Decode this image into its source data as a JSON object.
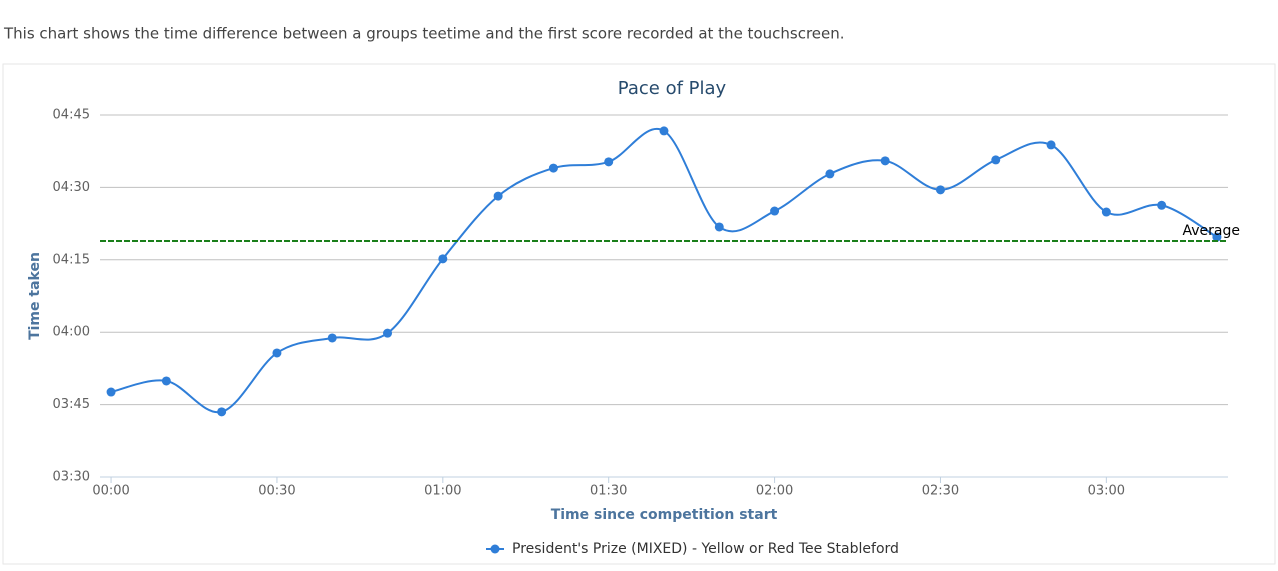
{
  "description": "This chart shows the time difference between a groups teetime and the first score recorded at the touchscreen.",
  "chart_data": {
    "type": "line",
    "title": "Pace of Play",
    "x_label": "Time since competition start",
    "y_label": "Time taken",
    "x": [
      0,
      10,
      20,
      30,
      40,
      50,
      60,
      70,
      80,
      90,
      100,
      110,
      120,
      130,
      140,
      150,
      160,
      170,
      180,
      190,
      200
    ],
    "series": [
      {
        "name": "President's Prize (MIXED) - Yellow or Red Tee Stableford",
        "color": "#2f7ed8",
        "values": [
          227.6,
          229.9,
          223.5,
          235.7,
          238.8,
          239.8,
          255.2,
          268.2,
          274,
          275.3,
          281.7,
          261.8,
          265.1,
          272.8,
          275.5,
          269.5,
          275.7,
          278.8,
          264.9,
          266.3,
          259.7
        ]
      }
    ],
    "xlim": [
      -2,
      202
    ],
    "ylim": [
      210,
      285
    ],
    "xticks": [
      {
        "value": 0,
        "label": "00:00"
      },
      {
        "value": 30,
        "label": "00:30"
      },
      {
        "value": 60,
        "label": "01:00"
      },
      {
        "value": 90,
        "label": "01:30"
      },
      {
        "value": 120,
        "label": "02:00"
      },
      {
        "value": 150,
        "label": "02:30"
      },
      {
        "value": 180,
        "label": "03:00"
      }
    ],
    "yticks": [
      {
        "value": 210,
        "label": "03:30"
      },
      {
        "value": 225,
        "label": "03:45"
      },
      {
        "value": 240,
        "label": "04:00"
      },
      {
        "value": 255,
        "label": "04:15"
      },
      {
        "value": 270,
        "label": "04:30"
      },
      {
        "value": 285,
        "label": "04:45"
      }
    ],
    "average_line": {
      "value": 258.9,
      "label": "Average",
      "color": "#1a7f1a"
    },
    "grid": true
  }
}
